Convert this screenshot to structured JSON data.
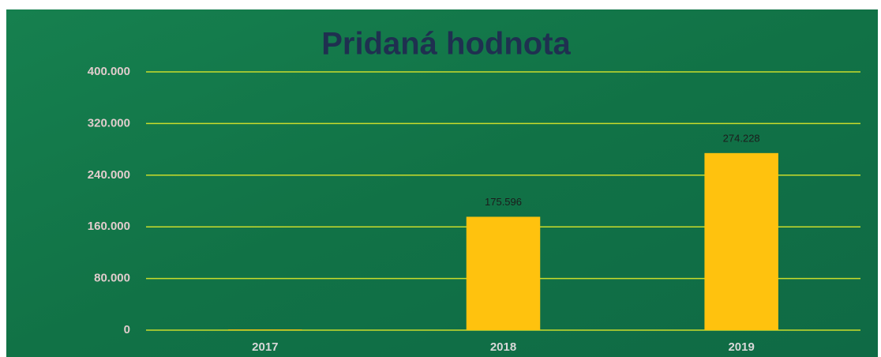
{
  "chart_data": {
    "type": "bar",
    "title": "Pridaná hodnota",
    "categories": [
      "2017",
      "2018",
      "2019"
    ],
    "values": [
      1000,
      175596,
      274228
    ],
    "value_labels": [
      null,
      "175.596",
      "274.228"
    ],
    "color": "#ffc20e",
    "ylim": [
      0,
      400000
    ],
    "yticks": [
      0,
      {
        "value": 80000,
        "label": "80.000"
      },
      {
        "value": 160000,
        "label": "160.000"
      },
      {
        "value": 240000,
        "label": "240.000"
      },
      {
        "value": 320000,
        "label": "320.000"
      },
      {
        "value": 400000,
        "label": "400.000"
      }
    ],
    "grid": true
  }
}
